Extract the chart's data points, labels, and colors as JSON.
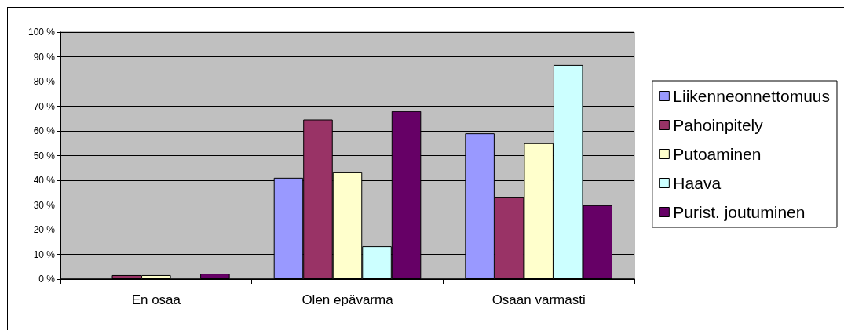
{
  "chart_data": {
    "type": "bar",
    "categories": [
      "En osaa",
      "Olen epävarma",
      "Osaan varmasti"
    ],
    "series": [
      {
        "name": "Liikenneonnettomuus",
        "color": "#9999ff",
        "values": [
          0,
          41,
          59
        ]
      },
      {
        "name": "Pahoinpitely",
        "color": "#993366",
        "values": [
          1.6,
          64.6,
          33.3
        ]
      },
      {
        "name": "Putoaminen",
        "color": "#ffffcc",
        "values": [
          1.6,
          43.2,
          55
        ]
      },
      {
        "name": "Haava",
        "color": "#ccffff",
        "values": [
          0,
          13.3,
          86.7
        ]
      },
      {
        "name": "Purist. joutuminen",
        "color": "#660066",
        "values": [
          2.2,
          68,
          29.9
        ]
      }
    ],
    "ylim": [
      0,
      100
    ],
    "yticks": [
      {
        "value": 0,
        "label": "0 %"
      },
      {
        "value": 10,
        "label": "10 %"
      },
      {
        "value": 20,
        "label": "20 %"
      },
      {
        "value": 30,
        "label": "30 %"
      },
      {
        "value": 40,
        "label": "40 %"
      },
      {
        "value": 50,
        "label": "50 %"
      },
      {
        "value": 60,
        "label": "60 %"
      },
      {
        "value": 70,
        "label": "70 %"
      },
      {
        "value": 80,
        "label": "80 %"
      },
      {
        "value": 90,
        "label": "90 %"
      },
      {
        "value": 100,
        "label": "100 %"
      }
    ],
    "grid": "y",
    "legend": "right"
  }
}
